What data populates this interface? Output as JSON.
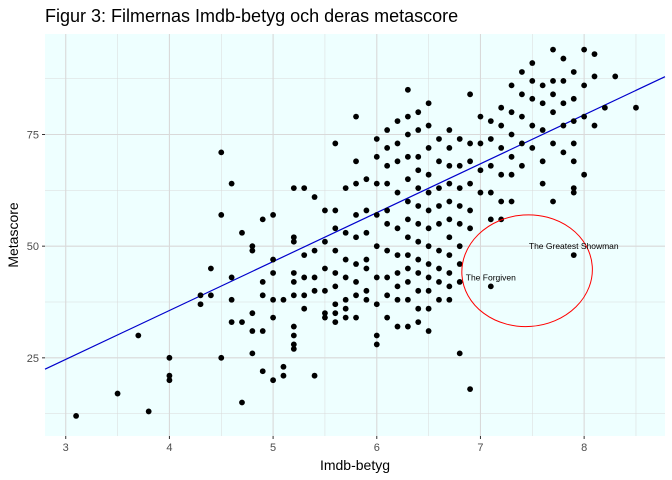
{
  "chart_data": {
    "type": "scatter",
    "title": "Figur 3: Filmernas Imdb-betyg och deras metascore",
    "xlabel": "Imdb-betyg",
    "ylabel": "Metascore",
    "xlim": [
      2.8,
      8.78
    ],
    "ylim": [
      7.5,
      97.5
    ],
    "x_ticks": [
      3,
      4,
      5,
      6,
      7,
      8
    ],
    "y_ticks": [
      25,
      50,
      75
    ],
    "grid": true,
    "background_color": "#eeffff",
    "grid_color": "#d9d9d9",
    "point_color": "#000000",
    "regression_line": {
      "color": "#0000cc",
      "intercept": -8.2,
      "slope": 10.95
    },
    "highlight_ellipse": {
      "color": "#ff0000",
      "cx": 7.45,
      "cy": 44.5,
      "rx": 0.63,
      "ry": 12.5
    },
    "annotations": [
      {
        "text": "The Greatest Showman",
        "x": 7.9,
        "y": 50
      },
      {
        "text": "The Forgiven",
        "x": 7.1,
        "y": 43
      }
    ],
    "points": [
      [
        3.1,
        12
      ],
      [
        3.5,
        17
      ],
      [
        3.7,
        30
      ],
      [
        3.8,
        13
      ],
      [
        4.0,
        25
      ],
      [
        4.0,
        21
      ],
      [
        4.0,
        20
      ],
      [
        4.3,
        37
      ],
      [
        4.3,
        39
      ],
      [
        4.4,
        45
      ],
      [
        4.4,
        39
      ],
      [
        4.5,
        71
      ],
      [
        4.5,
        57
      ],
      [
        4.5,
        25
      ],
      [
        4.6,
        64
      ],
      [
        4.6,
        43
      ],
      [
        4.6,
        38
      ],
      [
        4.6,
        33
      ],
      [
        4.7,
        53
      ],
      [
        4.7,
        33
      ],
      [
        4.7,
        15
      ],
      [
        4.8,
        49
      ],
      [
        4.8,
        50
      ],
      [
        4.8,
        35
      ],
      [
        4.8,
        31
      ],
      [
        4.8,
        26
      ],
      [
        4.9,
        56
      ],
      [
        4.9,
        42
      ],
      [
        4.9,
        39
      ],
      [
        4.9,
        31
      ],
      [
        4.9,
        22
      ],
      [
        5.0,
        57
      ],
      [
        5.0,
        47
      ],
      [
        5.0,
        44
      ],
      [
        5.0,
        38
      ],
      [
        5.0,
        34
      ],
      [
        5.0,
        20
      ],
      [
        5.1,
        38
      ],
      [
        5.1,
        23
      ],
      [
        5.1,
        21
      ],
      [
        5.2,
        63
      ],
      [
        5.2,
        52
      ],
      [
        5.2,
        51
      ],
      [
        5.2,
        44
      ],
      [
        5.2,
        42
      ],
      [
        5.2,
        39
      ],
      [
        5.2,
        32
      ],
      [
        5.2,
        30
      ],
      [
        5.2,
        28
      ],
      [
        5.2,
        27
      ],
      [
        5.3,
        63
      ],
      [
        5.3,
        48
      ],
      [
        5.3,
        43
      ],
      [
        5.3,
        39
      ],
      [
        5.3,
        36
      ],
      [
        5.4,
        61
      ],
      [
        5.4,
        49
      ],
      [
        5.4,
        43
      ],
      [
        5.4,
        40
      ],
      [
        5.4,
        21
      ],
      [
        5.5,
        58
      ],
      [
        5.5,
        51
      ],
      [
        5.5,
        45
      ],
      [
        5.5,
        40
      ],
      [
        5.5,
        35
      ],
      [
        5.5,
        34
      ],
      [
        5.6,
        73
      ],
      [
        5.6,
        58
      ],
      [
        5.6,
        54
      ],
      [
        5.6,
        49
      ],
      [
        5.6,
        44
      ],
      [
        5.6,
        41
      ],
      [
        5.6,
        37
      ],
      [
        5.6,
        35
      ],
      [
        5.6,
        33
      ],
      [
        5.7,
        63
      ],
      [
        5.7,
        53
      ],
      [
        5.7,
        47
      ],
      [
        5.7,
        43
      ],
      [
        5.7,
        38
      ],
      [
        5.7,
        36
      ],
      [
        5.7,
        34
      ],
      [
        5.8,
        79
      ],
      [
        5.8,
        69
      ],
      [
        5.8,
        64
      ],
      [
        5.8,
        57
      ],
      [
        5.8,
        52
      ],
      [
        5.8,
        46
      ],
      [
        5.8,
        42
      ],
      [
        5.8,
        39
      ],
      [
        5.8,
        34
      ],
      [
        5.9,
        65
      ],
      [
        5.9,
        58
      ],
      [
        5.9,
        53
      ],
      [
        5.9,
        47
      ],
      [
        5.9,
        45
      ],
      [
        5.9,
        40
      ],
      [
        5.9,
        38
      ],
      [
        6.0,
        74
      ],
      [
        6.0,
        70
      ],
      [
        6.0,
        64
      ],
      [
        6.0,
        57
      ],
      [
        6.0,
        50
      ],
      [
        6.0,
        43
      ],
      [
        6.0,
        37
      ],
      [
        6.0,
        30
      ],
      [
        6.0,
        28
      ],
      [
        6.1,
        76
      ],
      [
        6.1,
        72
      ],
      [
        6.1,
        68
      ],
      [
        6.1,
        64
      ],
      [
        6.1,
        58
      ],
      [
        6.1,
        55
      ],
      [
        6.1,
        49
      ],
      [
        6.1,
        43
      ],
      [
        6.1,
        39
      ],
      [
        6.1,
        34
      ],
      [
        6.2,
        78
      ],
      [
        6.2,
        73
      ],
      [
        6.2,
        69
      ],
      [
        6.2,
        62
      ],
      [
        6.2,
        54
      ],
      [
        6.2,
        48
      ],
      [
        6.2,
        44
      ],
      [
        6.2,
        41
      ],
      [
        6.2,
        38
      ],
      [
        6.2,
        32
      ],
      [
        6.3,
        85
      ],
      [
        6.3,
        79
      ],
      [
        6.3,
        75
      ],
      [
        6.3,
        70
      ],
      [
        6.3,
        65
      ],
      [
        6.3,
        60
      ],
      [
        6.3,
        56
      ],
      [
        6.3,
        52
      ],
      [
        6.3,
        48
      ],
      [
        6.3,
        45
      ],
      [
        6.3,
        42
      ],
      [
        6.3,
        38
      ],
      [
        6.3,
        32
      ],
      [
        6.4,
        80
      ],
      [
        6.4,
        76
      ],
      [
        6.4,
        70
      ],
      [
        6.4,
        67
      ],
      [
        6.4,
        63
      ],
      [
        6.4,
        59
      ],
      [
        6.4,
        55
      ],
      [
        6.4,
        51
      ],
      [
        6.4,
        47
      ],
      [
        6.4,
        44
      ],
      [
        6.4,
        40
      ],
      [
        6.4,
        36
      ],
      [
        6.4,
        33
      ],
      [
        6.5,
        82
      ],
      [
        6.5,
        77
      ],
      [
        6.5,
        72
      ],
      [
        6.5,
        66
      ],
      [
        6.5,
        62
      ],
      [
        6.5,
        58
      ],
      [
        6.5,
        54
      ],
      [
        6.5,
        50
      ],
      [
        6.5,
        46
      ],
      [
        6.5,
        43
      ],
      [
        6.5,
        40
      ],
      [
        6.5,
        36
      ],
      [
        6.5,
        31
      ],
      [
        6.6,
        74
      ],
      [
        6.6,
        69
      ],
      [
        6.6,
        63
      ],
      [
        6.6,
        59
      ],
      [
        6.6,
        55
      ],
      [
        6.6,
        49
      ],
      [
        6.6,
        45
      ],
      [
        6.6,
        42
      ],
      [
        6.6,
        38
      ],
      [
        6.7,
        76
      ],
      [
        6.7,
        72
      ],
      [
        6.7,
        68
      ],
      [
        6.7,
        64
      ],
      [
        6.7,
        60
      ],
      [
        6.7,
        56
      ],
      [
        6.7,
        52
      ],
      [
        6.7,
        48
      ],
      [
        6.7,
        44
      ],
      [
        6.7,
        41
      ],
      [
        6.7,
        38
      ],
      [
        6.8,
        74
      ],
      [
        6.8,
        68
      ],
      [
        6.8,
        63
      ],
      [
        6.8,
        59
      ],
      [
        6.8,
        55
      ],
      [
        6.8,
        50
      ],
      [
        6.8,
        46
      ],
      [
        6.8,
        42
      ],
      [
        6.8,
        26
      ],
      [
        6.9,
        84
      ],
      [
        6.9,
        73
      ],
      [
        6.9,
        69
      ],
      [
        6.9,
        64
      ],
      [
        6.9,
        58
      ],
      [
        6.9,
        54
      ],
      [
        6.9,
        18
      ],
      [
        7.0,
        79
      ],
      [
        7.0,
        73
      ],
      [
        7.0,
        67
      ],
      [
        7.0,
        62
      ],
      [
        7.1,
        78
      ],
      [
        7.1,
        74
      ],
      [
        7.1,
        68
      ],
      [
        7.1,
        62
      ],
      [
        7.1,
        56
      ],
      [
        7.1,
        41
      ],
      [
        7.2,
        81
      ],
      [
        7.2,
        77
      ],
      [
        7.2,
        72
      ],
      [
        7.2,
        66
      ],
      [
        7.2,
        60
      ],
      [
        7.2,
        56
      ],
      [
        7.3,
        86
      ],
      [
        7.3,
        80
      ],
      [
        7.3,
        75
      ],
      [
        7.3,
        70
      ],
      [
        7.3,
        66
      ],
      [
        7.3,
        60
      ],
      [
        7.4,
        89
      ],
      [
        7.4,
        84
      ],
      [
        7.4,
        79
      ],
      [
        7.4,
        73
      ],
      [
        7.4,
        68
      ],
      [
        7.5,
        91
      ],
      [
        7.5,
        87
      ],
      [
        7.5,
        83
      ],
      [
        7.5,
        77
      ],
      [
        7.5,
        72
      ],
      [
        7.6,
        86
      ],
      [
        7.6,
        82
      ],
      [
        7.6,
        76
      ],
      [
        7.6,
        69
      ],
      [
        7.6,
        64
      ],
      [
        7.7,
        94
      ],
      [
        7.7,
        87
      ],
      [
        7.7,
        84
      ],
      [
        7.7,
        80
      ],
      [
        7.7,
        73
      ],
      [
        7.7,
        60
      ],
      [
        7.8,
        92
      ],
      [
        7.8,
        87
      ],
      [
        7.8,
        82
      ],
      [
        7.8,
        77
      ],
      [
        7.8,
        71
      ],
      [
        7.9,
        89
      ],
      [
        7.9,
        83
      ],
      [
        7.9,
        78
      ],
      [
        7.9,
        73
      ],
      [
        7.9,
        69
      ],
      [
        7.9,
        63
      ],
      [
        7.9,
        62
      ],
      [
        7.9,
        48
      ],
      [
        8.0,
        94
      ],
      [
        8.0,
        86
      ],
      [
        8.0,
        79
      ],
      [
        8.0,
        66
      ],
      [
        8.1,
        93
      ],
      [
        8.1,
        88
      ],
      [
        8.1,
        77
      ],
      [
        8.2,
        81
      ],
      [
        8.3,
        88
      ],
      [
        8.5,
        81
      ]
    ]
  }
}
